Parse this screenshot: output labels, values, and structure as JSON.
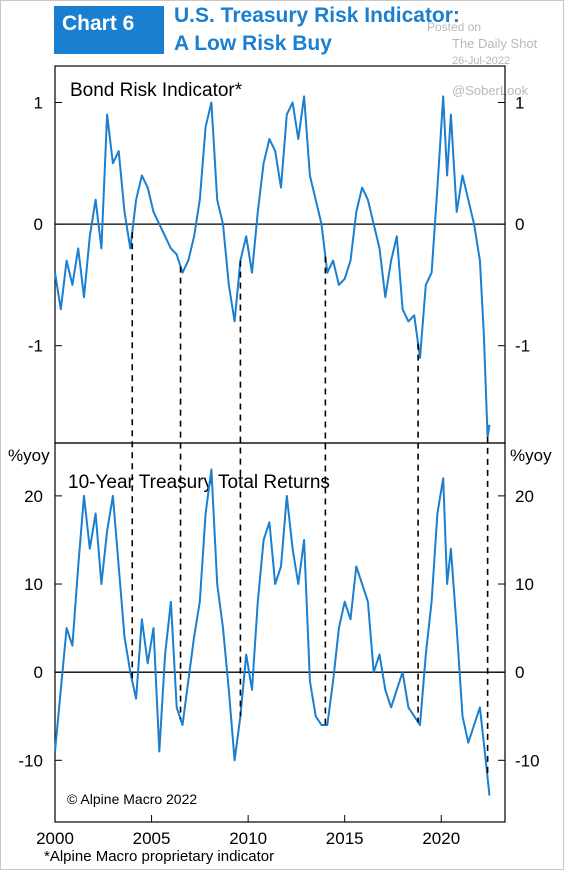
{
  "header": {
    "chart_label": "Chart 6",
    "title_line1": "U.S. Treasury Risk Indicator:",
    "title_line2": "A Low Risk Buy"
  },
  "watermark": {
    "posted": "Posted on",
    "source": "The Daily Shot",
    "date": "26-Jul-2022",
    "handle": "@SoberLook"
  },
  "footnote": "*Alpine Macro proprietary indicator",
  "colors": {
    "series": "#1a7fd0",
    "accent": "#1a7fd0"
  },
  "chart_data": [
    {
      "type": "line",
      "title": "Bond Risk Indicator*",
      "ylabel": "",
      "ylim": [
        -1.8,
        1.3
      ],
      "yticks": [
        1,
        0,
        -1
      ],
      "ytick_labels": [
        "1",
        "0",
        "-1"
      ],
      "xlim": [
        2000,
        2023.3
      ],
      "series": [
        {
          "x": [
            2000,
            2000.3,
            2000.6,
            2000.9,
            2001.2,
            2001.5,
            2001.8,
            2002.1,
            2002.4,
            2002.7,
            2003.0,
            2003.3,
            2003.6,
            2003.9,
            2004.2,
            2004.5,
            2004.8,
            2005.1,
            2005.4,
            2005.7,
            2006.0,
            2006.3,
            2006.6,
            2006.9,
            2007.2,
            2007.5,
            2007.8,
            2008.1,
            2008.4,
            2008.7,
            2009.0,
            2009.3,
            2009.6,
            2009.9,
            2010.2,
            2010.5,
            2010.8,
            2011.1,
            2011.4,
            2011.7,
            2012.0,
            2012.3,
            2012.6,
            2012.9,
            2013.2,
            2013.5,
            2013.8,
            2014.1,
            2014.4,
            2014.7,
            2015.0,
            2015.3,
            2015.6,
            2015.9,
            2016.2,
            2016.5,
            2016.8,
            2017.1,
            2017.4,
            2017.7,
            2018.0,
            2018.3,
            2018.6,
            2018.9,
            2019.2,
            2019.5,
            2019.8,
            2020.1,
            2020.3,
            2020.5,
            2020.8,
            2021.1,
            2021.4,
            2021.7,
            2022.0,
            2022.2,
            2022.4,
            2022.5
          ],
          "values": [
            -0.4,
            -0.7,
            -0.3,
            -0.5,
            -0.2,
            -0.6,
            -0.1,
            0.2,
            -0.2,
            0.9,
            0.5,
            0.6,
            0.1,
            -0.2,
            0.2,
            0.4,
            0.3,
            0.1,
            0.0,
            -0.1,
            -0.2,
            -0.25,
            -0.4,
            -0.3,
            -0.1,
            0.2,
            0.8,
            1.0,
            0.2,
            0.0,
            -0.5,
            -0.8,
            -0.3,
            -0.1,
            -0.4,
            0.1,
            0.5,
            0.7,
            0.6,
            0.3,
            0.9,
            1.0,
            0.7,
            1.05,
            0.4,
            0.2,
            0.0,
            -0.4,
            -0.3,
            -0.5,
            -0.45,
            -0.3,
            0.1,
            0.3,
            0.2,
            0.0,
            -0.2,
            -0.6,
            -0.3,
            -0.1,
            -0.7,
            -0.8,
            -0.75,
            -1.1,
            -0.5,
            -0.4,
            0.3,
            1.05,
            0.4,
            0.9,
            0.1,
            0.4,
            0.2,
            0.0,
            -0.3,
            -0.9,
            -1.75,
            -1.65
          ]
        }
      ],
      "annotations": []
    },
    {
      "type": "line",
      "title": "10-Year Treasury Total Returns",
      "ylabel": "%yoy",
      "ylim": [
        -17,
        26
      ],
      "yticks": [
        20,
        10,
        0,
        -10
      ],
      "ytick_labels": [
        "20",
        "10",
        "0",
        "-10"
      ],
      "xlim": [
        2000,
        2023.3
      ],
      "xticks": [
        2000,
        2005,
        2010,
        2015,
        2020
      ],
      "xtick_labels": [
        "2000",
        "2005",
        "2010",
        "2015",
        "2020"
      ],
      "series": [
        {
          "x": [
            2000,
            2000.3,
            2000.6,
            2000.9,
            2001.2,
            2001.5,
            2001.8,
            2002.1,
            2002.4,
            2002.7,
            2003.0,
            2003.3,
            2003.6,
            2003.9,
            2004.2,
            2004.5,
            2004.8,
            2005.1,
            2005.4,
            2005.7,
            2006.0,
            2006.3,
            2006.6,
            2006.9,
            2007.2,
            2007.5,
            2007.8,
            2008.1,
            2008.4,
            2008.7,
            2009.0,
            2009.3,
            2009.6,
            2009.9,
            2010.2,
            2010.5,
            2010.8,
            2011.1,
            2011.4,
            2011.7,
            2012.0,
            2012.3,
            2012.6,
            2012.9,
            2013.2,
            2013.5,
            2013.8,
            2014.1,
            2014.4,
            2014.7,
            2015.0,
            2015.3,
            2015.6,
            2015.9,
            2016.2,
            2016.5,
            2016.8,
            2017.1,
            2017.4,
            2017.7,
            2018.0,
            2018.3,
            2018.6,
            2018.9,
            2019.2,
            2019.5,
            2019.8,
            2020.1,
            2020.3,
            2020.5,
            2020.8,
            2021.1,
            2021.4,
            2021.7,
            2022.0,
            2022.2,
            2022.4,
            2022.5
          ],
          "values": [
            -9,
            -2,
            5,
            3,
            12,
            20,
            14,
            18,
            10,
            16,
            20,
            12,
            4,
            0,
            -3,
            6,
            1,
            5,
            -9,
            2,
            8,
            -4,
            -6,
            -1,
            4,
            8,
            18,
            23,
            10,
            5,
            -2,
            -10,
            -5,
            2,
            -2,
            8,
            15,
            17,
            10,
            12,
            20,
            14,
            10,
            15,
            -1,
            -5,
            -6,
            -6,
            -1,
            5,
            8,
            6,
            12,
            10,
            8,
            0,
            2,
            -2,
            -4,
            -2,
            0,
            -4,
            -5,
            -6,
            2,
            8,
            18,
            22,
            10,
            14,
            5,
            -5,
            -8,
            -6,
            -4,
            -8,
            -12,
            -14
          ]
        }
      ],
      "annotations": [
        {
          "text": "© Alpine Macro 2022"
        }
      ]
    }
  ],
  "guide_lines_x": [
    2004.0,
    2006.5,
    2009.6,
    2014.0,
    2018.8,
    2022.4
  ]
}
